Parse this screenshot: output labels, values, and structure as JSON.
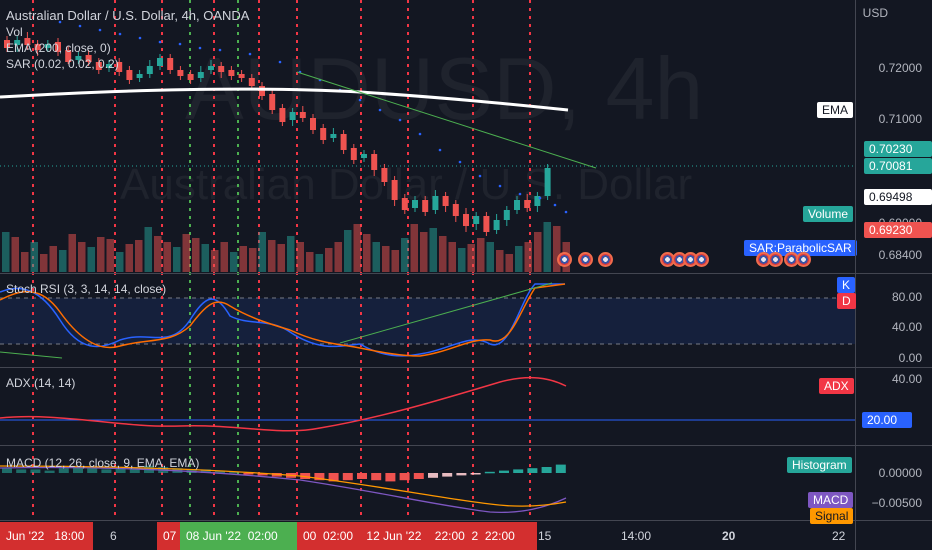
{
  "symbol": {
    "title": "Australian Dollar / U.S. Dollar, 4h, OANDA",
    "watermark_ticker": "AUDUSD, 4h",
    "watermark_name": "Australian Dollar / U.S. Dollar"
  },
  "legend": {
    "vol": "Vol",
    "ema": "EMA (200, close, 0)",
    "sar": "SAR (0.02, 0.02, 0.2)"
  },
  "price_scale": {
    "currency": "USD",
    "ticks": [
      "0.72000",
      "0.71000",
      "0.69000",
      "0.68400"
    ],
    "tags": {
      "ema": "EMA",
      "price_last": "0.70230",
      "price_close": "0.70081",
      "ema_value": "0.69498",
      "volume": "Volume",
      "sar_value": "0.69230",
      "sar_label": "SAR:ParabolicSAR"
    }
  },
  "stoch_rsi": {
    "legend": "Stoch RSI (3, 3, 14, 14, close)",
    "ticks": [
      "80.00",
      "40.00",
      "0.00"
    ],
    "k_label": "K",
    "d_label": "D"
  },
  "adx": {
    "legend": "ADX (14, 14)",
    "ticks": [
      "40.00",
      "20.00"
    ],
    "label": "ADX"
  },
  "macd": {
    "legend": "MACD (12, 26, close, 9, EMA, EMA)",
    "ticks": [
      "0.00000",
      "−0.00500"
    ],
    "histogram_label": "Histogram",
    "macd_label": "MACD",
    "signal_label": "Signal"
  },
  "time_axis": {
    "labels": [
      "Jun '22",
      "18:00",
      "6",
      "07",
      "08 Jun '22",
      "02:00",
      "00",
      "02:00",
      "12 Jun '22",
      "22:00",
      "2",
      "22:00",
      "15",
      "14:00",
      "20",
      "22"
    ]
  },
  "colors": {
    "background": "#131722",
    "up": "#26a69a",
    "down": "#ef5350",
    "ema_line": "#ffffff",
    "sar_dots": "#2962ff",
    "stoch_k": "#2962ff",
    "stoch_d": "#ff6d00",
    "adx_line": "#f23645",
    "macd_line": "#7e57c2",
    "signal_line": "#ff9800",
    "trendline": "#4caf50"
  }
}
